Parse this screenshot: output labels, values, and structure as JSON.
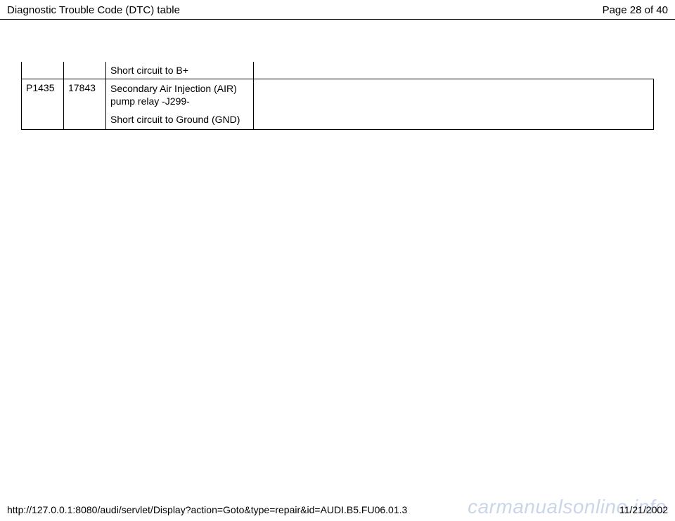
{
  "header": {
    "title": "Diagnostic Trouble Code (DTC) table",
    "page_label": "Page 28 of 40"
  },
  "table": {
    "row1": {
      "code1": "",
      "code2": "",
      "desc": "Short circuit to B+"
    },
    "row2": {
      "code1": "P1435",
      "code2": "17843",
      "desc_line1": "Secondary Air Injection (AIR) pump relay -J299-",
      "desc_line2": "Short circuit to Ground (GND)"
    }
  },
  "footer": {
    "url": "http://127.0.0.1:8080/audi/servlet/Display?action=Goto&type=repair&id=AUDI.B5.FU06.01.3",
    "date": "11/21/2002"
  },
  "watermark": "carmanualsonline.info"
}
